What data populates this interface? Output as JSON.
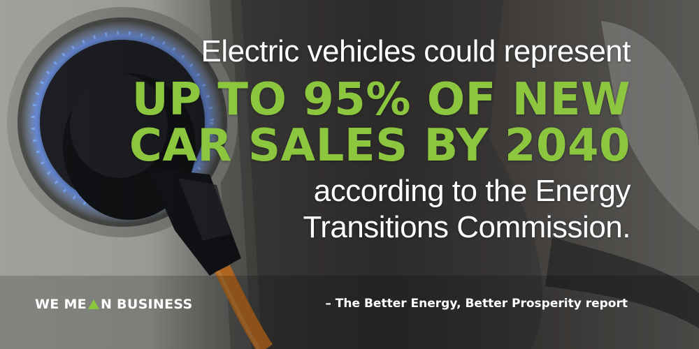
{
  "headline": {
    "intro": "Electric vehicles could represent",
    "highlight_line_1": "UP TO 95% OF NEW",
    "highlight_line_2": "CAR SALES BY 2040",
    "source_line_1": "according to the Energy",
    "source_line_2": "Transitions Commission."
  },
  "logo": {
    "text_before": "WE ME",
    "text_after": "N BUSINESS",
    "triangle_color": "#8cc63f"
  },
  "attribution": "– The Better Energy, Better Prosperity report",
  "colors": {
    "accent": "#8cc63f",
    "text": "#ffffff"
  },
  "background": {
    "cable_color": "#e8862a",
    "charging_ring_color": "#7fb0ff"
  }
}
